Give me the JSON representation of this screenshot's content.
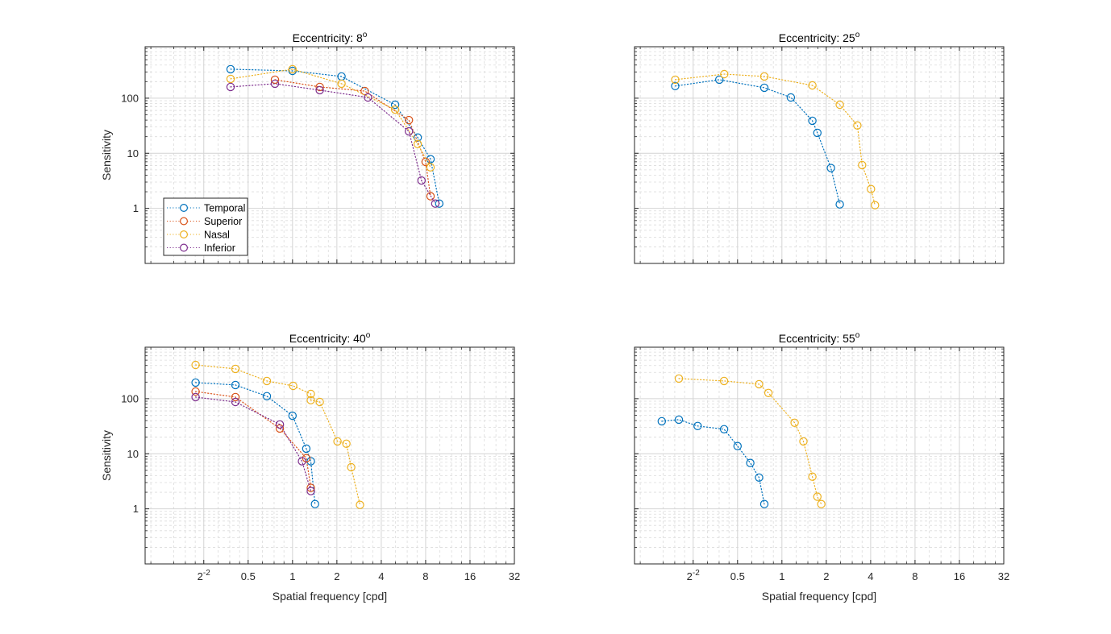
{
  "figure": {
    "background": "#ffffff",
    "series_colors": {
      "Temporal": "#0072BD",
      "Superior": "#D95319",
      "Nasal": "#EDB120",
      "Inferior": "#7E2F8E"
    }
  },
  "chart_data": [
    {
      "type": "line",
      "title": "Eccentricity: 8",
      "title_superscript": "o",
      "xlabel": "",
      "ylabel": "Sensitivity",
      "xscale": "log2",
      "yscale": "log10",
      "xlim": [
        0.1,
        32
      ],
      "ylim": [
        0.1,
        860
      ],
      "xticks": [
        0.25,
        0.5,
        1,
        2,
        4,
        8,
        16,
        32
      ],
      "xticklabels": [],
      "yticks": [
        1,
        10,
        100
      ],
      "yticklabels": [
        "1",
        "10",
        "100"
      ],
      "grid": true,
      "minor_grid": true,
      "marker": "circle",
      "linestyle": "dotted",
      "legend": {
        "placement": "bottom-left",
        "entries": [
          "Temporal",
          "Superior",
          "Nasal",
          "Inferior"
        ]
      },
      "series": [
        {
          "name": "Temporal",
          "x": [
            0.38,
            1.0,
            2.15,
            4.97,
            7.07,
            8.64,
            9.9
          ],
          "y": [
            336,
            313,
            248,
            76,
            19.3,
            7.8,
            1.22
          ]
        },
        {
          "name": "Superior",
          "x": [
            0.76,
            1.53,
            3.09,
            6.16,
            8.0,
            8.64
          ],
          "y": [
            217,
            160,
            135,
            40,
            7.0,
            1.66
          ]
        },
        {
          "name": "Nasal",
          "x": [
            0.38,
            1.0,
            2.15,
            4.97,
            7.07,
            8.64
          ],
          "y": [
            224,
            336,
            183,
            62,
            14.7,
            5.55
          ]
        },
        {
          "name": "Inferior",
          "x": [
            0.38,
            0.76,
            1.53,
            3.25,
            6.16,
            7.5,
            9.3
          ],
          "y": [
            160,
            183,
            140,
            103,
            25,
            3.2,
            1.22
          ]
        }
      ]
    },
    {
      "type": "line",
      "title": "Eccentricity: 25",
      "title_superscript": "o",
      "xlabel": "",
      "ylabel": "",
      "xscale": "log2",
      "yscale": "log10",
      "xlim": [
        0.1,
        32
      ],
      "ylim": [
        0.1,
        860
      ],
      "xticks": [
        0.25,
        0.5,
        1,
        2,
        4,
        8,
        16,
        32
      ],
      "xticklabels": [],
      "yticks": [
        1,
        10,
        100
      ],
      "yticklabels": [],
      "grid": true,
      "minor_grid": true,
      "marker": "circle",
      "linestyle": "dotted",
      "series": [
        {
          "name": "Temporal",
          "x": [
            0.189,
            0.376,
            0.76,
            1.15,
            1.61,
            1.74,
            2.15,
            2.47
          ],
          "y": [
            166,
            217,
            155,
            103,
            39,
            23.5,
            5.4,
            1.18
          ]
        },
        {
          "name": "Nasal",
          "x": [
            0.189,
            0.406,
            0.76,
            1.61,
            2.47,
            3.25,
            3.5,
            4.02,
            4.28
          ],
          "y": [
            217,
            274,
            248,
            171,
            76,
            32,
            6.1,
            2.24,
            1.14
          ]
        }
      ]
    },
    {
      "type": "line",
      "title": "Eccentricity: 40",
      "title_superscript": "o",
      "xlabel": "Spatial frequency [cpd]",
      "ylabel": "Sensitivity",
      "xscale": "log2",
      "yscale": "log10",
      "xlim": [
        0.1,
        32
      ],
      "ylim": [
        0.1,
        860
      ],
      "xticks": [
        0.25,
        0.5,
        1,
        2,
        4,
        8,
        16,
        32
      ],
      "xticklabels": [
        "2",
        "0.5",
        "1",
        "2",
        "4",
        "8",
        "16",
        "32"
      ],
      "xticklabel_superscripts": [
        "-2",
        "",
        "",
        "",
        "",
        "",
        "",
        ""
      ],
      "yticks": [
        1,
        10,
        100
      ],
      "yticklabels": [
        "1",
        "10",
        "100"
      ],
      "grid": true,
      "minor_grid": true,
      "marker": "circle",
      "linestyle": "dotted",
      "series": [
        {
          "name": "Temporal",
          "x": [
            0.22,
            0.41,
            0.67,
            1.0,
            1.24,
            1.33,
            1.42
          ],
          "y": [
            196,
            177,
            111,
            49,
            12.4,
            7.3,
            1.22
          ]
        },
        {
          "name": "Superior",
          "x": [
            0.22,
            0.41,
            0.82,
            1.24,
            1.33
          ],
          "y": [
            135,
            107,
            28.8,
            8.3,
            2.4
          ]
        },
        {
          "name": "Nasal",
          "x": [
            0.22,
            0.41,
            0.67,
            1.01,
            1.33,
            1.33,
            1.53,
            2.02,
            2.32,
            2.5,
            2.87
          ],
          "y": [
            410,
            347,
            210,
            171,
            122,
            94,
            87,
            16.8,
            15.2,
            5.7,
            1.18
          ]
        },
        {
          "name": "Inferior",
          "x": [
            0.22,
            0.41,
            0.82,
            1.16,
            1.33
          ],
          "y": [
            107,
            87,
            34,
            7.3,
            2.1
          ]
        }
      ]
    },
    {
      "type": "line",
      "title": "Eccentricity: 55",
      "title_superscript": "o",
      "xlabel": "Spatial frequency [cpd]",
      "ylabel": "",
      "xscale": "log2",
      "yscale": "log10",
      "xlim": [
        0.1,
        32
      ],
      "ylim": [
        0.1,
        860
      ],
      "xticks": [
        0.25,
        0.5,
        1,
        2,
        4,
        8,
        16,
        32
      ],
      "xticklabels": [
        "2",
        "0.5",
        "1",
        "2",
        "4",
        "8",
        "16",
        "32"
      ],
      "xticklabel_superscripts": [
        "-2",
        "",
        "",
        "",
        "",
        "",
        "",
        ""
      ],
      "yticks": [
        1,
        10,
        100
      ],
      "yticklabels": [],
      "grid": true,
      "minor_grid": true,
      "marker": "circle",
      "linestyle": "dotted",
      "series": [
        {
          "name": "Temporal",
          "x": [
            0.153,
            0.2,
            0.268,
            0.405,
            0.5,
            0.61,
            0.7,
            0.76
          ],
          "y": [
            39,
            41.7,
            31.9,
            27.9,
            13.8,
            6.8,
            3.7,
            1.22
          ]
        },
        {
          "name": "Nasal",
          "x": [
            0.2,
            0.405,
            0.7,
            0.81,
            1.22,
            1.4,
            1.61,
            1.74,
            1.85
          ],
          "y": [
            232,
            210,
            183,
            127,
            36.5,
            16.8,
            3.84,
            1.66,
            1.22
          ]
        }
      ]
    }
  ]
}
